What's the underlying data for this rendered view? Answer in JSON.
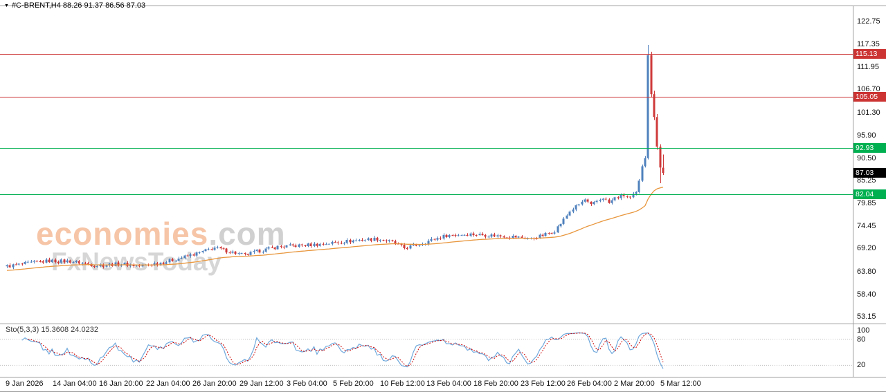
{
  "window": {
    "symbol_info": "#C-BRENT,H4  88.26 91.37 86.56 87.03"
  },
  "watermark": {
    "brand": "economies",
    "suffix": ".com",
    "subtitle": "FxNewsToday"
  },
  "chart_data": {
    "type": "candlestick",
    "symbol": "#C-BRENT",
    "timeframe": "H4",
    "ohlc_current": {
      "open": 88.26,
      "high": 91.37,
      "low": 86.56,
      "close": 87.03
    },
    "colors": {
      "up": "#4f81bd",
      "down": "#cf3a3a",
      "ma": "#e8963c",
      "sto_k": "#6fa8dc",
      "sto_d": "#cc0000",
      "separators": "#9a9a9a",
      "sto_guides": "#bdbdbd",
      "axis_text": "#111111"
    },
    "price_axis": {
      "range": [
        51.5,
        126.5
      ],
      "ticks": [
        "122.75",
        "117.35",
        "111.95",
        "106.70",
        "101.30",
        "95.90",
        "90.50",
        "85.25",
        "79.85",
        "74.45",
        "69.20",
        "63.80",
        "58.40",
        "53.15"
      ]
    },
    "levels": [
      {
        "price": 115.13,
        "label": "115.13",
        "color": "#cc3333",
        "type": "resistance"
      },
      {
        "price": 105.05,
        "label": "105.05",
        "color": "#cc3333",
        "type": "resistance"
      },
      {
        "price": 92.93,
        "label": "92.93",
        "color": "#00b050",
        "type": "support"
      },
      {
        "price": 82.04,
        "label": "82.04",
        "color": "#00b050",
        "type": "support"
      }
    ],
    "current_price": {
      "value": 87.03,
      "label": "87.03",
      "color": "#000000"
    },
    "time_axis": [
      "9 Jan 2026",
      "14 Jan 04:00",
      "16 Jan 20:00",
      "22 Jan 04:00",
      "26 Jan 20:00",
      "29 Jan 12:00",
      "3 Feb 04:00",
      "5 Feb 20:00",
      "10 Feb 12:00",
      "13 Feb 04:00",
      "18 Feb 20:00",
      "23 Feb 12:00",
      "26 Feb 04:00",
      "2 Mar 20:00",
      "5 Mar 12:00"
    ],
    "candles": {
      "generated_count": 210,
      "path_anchors": [
        [
          0,
          65.0
        ],
        [
          8,
          65.8
        ],
        [
          14,
          66.3
        ],
        [
          21,
          66.2
        ],
        [
          30,
          65.2
        ],
        [
          38,
          65.6
        ],
        [
          44,
          65.0
        ],
        [
          53,
          66.1
        ],
        [
          64,
          68.2
        ],
        [
          69,
          69.4
        ],
        [
          74,
          68.5
        ],
        [
          79,
          67.6
        ],
        [
          83,
          68.5
        ],
        [
          90,
          69.6
        ],
        [
          97,
          69.9
        ],
        [
          104,
          70.2
        ],
        [
          110,
          70.7
        ],
        [
          117,
          71.2
        ],
        [
          123,
          71.5
        ],
        [
          128,
          70.7
        ],
        [
          132,
          69.3
        ],
        [
          137,
          70.2
        ],
        [
          141,
          71.2
        ],
        [
          146,
          72.3
        ],
        [
          154,
          72.6
        ],
        [
          161,
          72.3
        ],
        [
          168,
          72.0
        ],
        [
          174,
          71.5
        ],
        [
          178,
          72.3
        ],
        [
          182,
          73.4
        ],
        [
          185,
          76.0
        ],
        [
          187,
          78.0
        ],
        [
          190,
          79.6
        ],
        [
          192,
          80.7
        ],
        [
          194,
          79.3
        ],
        [
          196,
          80.4
        ],
        [
          198,
          81.2
        ],
        [
          200,
          79.9
        ],
        [
          202,
          81.1
        ],
        [
          205,
          81.7
        ],
        [
          207,
          81.1
        ],
        [
          209,
          82.3
        ]
      ],
      "last_bars": [
        [
          82.5,
          85.6,
          82.2,
          85.2
        ],
        [
          85.2,
          89.0,
          84.9,
          88.6
        ],
        [
          88.6,
          91.0,
          88.3,
          90.5
        ],
        [
          90.5,
          117.2,
          90.2,
          114.8
        ],
        [
          114.8,
          115.6,
          104.8,
          105.6
        ],
        [
          105.6,
          106.4,
          99.5,
          100.2
        ],
        [
          100.2,
          100.9,
          92.5,
          93.2
        ],
        [
          93.2,
          93.8,
          84.6,
          88.3
        ],
        [
          88.26,
          91.37,
          86.56,
          87.03
        ]
      ]
    },
    "moving_average": {
      "style": "orange-smooth",
      "start": 64.0,
      "end": 82.04
    },
    "stochastic": {
      "label": "Sto(5,3,3) 15.3608 24.0232",
      "k_value": 15.3608,
      "d_value": 24.0232,
      "scale_labels": [
        "100",
        "80",
        "20"
      ],
      "guide_levels": [
        80,
        20
      ]
    }
  }
}
